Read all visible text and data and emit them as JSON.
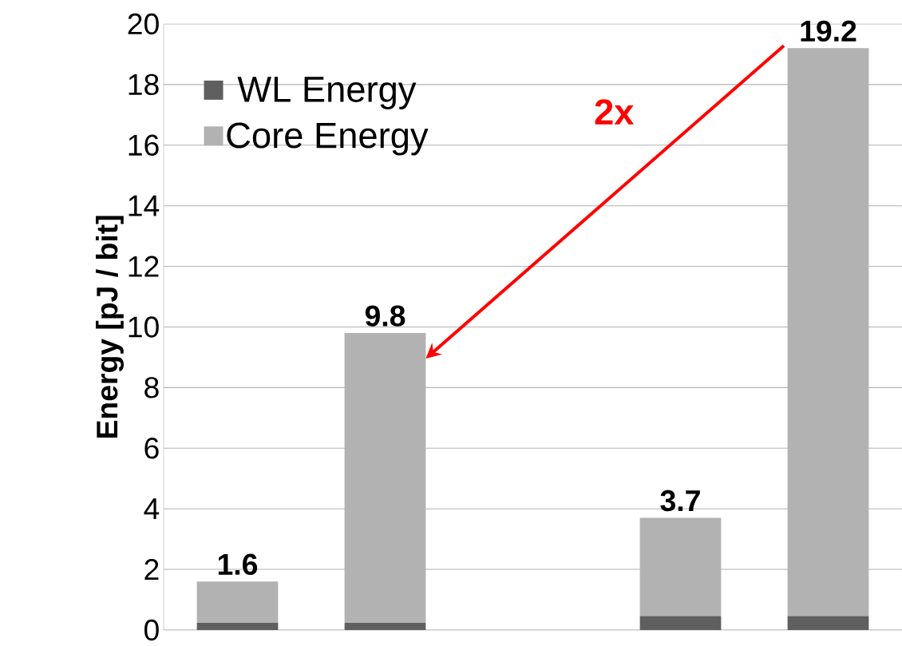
{
  "chart_data": {
    "type": "bar",
    "stacked": true,
    "ylabel": "Energy [pJ / bit]",
    "categories": [
      null,
      null,
      null,
      null,
      null
    ],
    "series": [
      {
        "name": "WL Energy",
        "color": "#5f5f5f",
        "values": [
          0.24,
          0.24,
          null,
          0.46,
          0.46
        ]
      },
      {
        "name": "Core Energy",
        "color": "#b2b2b2",
        "values": [
          1.36,
          9.56,
          null,
          3.24,
          18.74
        ]
      }
    ],
    "totals": [
      "1.6",
      "9.8",
      null,
      "3.7",
      "19.2"
    ],
    "ylim": [
      0,
      20
    ],
    "yticks": [
      0,
      2,
      4,
      6,
      8,
      10,
      12,
      14,
      16,
      18,
      20
    ],
    "grid": "y",
    "legend": "top left",
    "annotations": [
      "2x"
    ]
  }
}
